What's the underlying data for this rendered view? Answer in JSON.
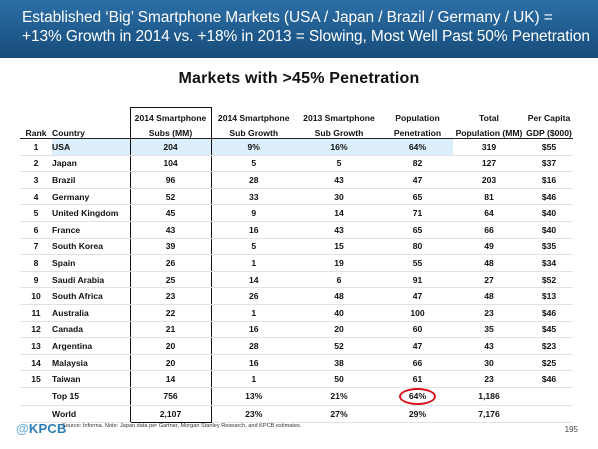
{
  "header": {
    "line1": "Established ‘Big’ Smartphone Markets (USA / Japan / Brazil / Germany / UK) =",
    "line2": "+13% Growth in 2014 vs. +18% in 2013 = Slowing, Most Well Past 50% Penetration"
  },
  "table_title": "Markets with >45% Penetration",
  "columns": {
    "rank": [
      "",
      "Rank"
    ],
    "country": [
      "",
      "Country"
    ],
    "subs": [
      "2014 Smartphone",
      "Subs (MM)"
    ],
    "sub_growth_2014": [
      "2014 Smartphone",
      "Sub Growth"
    ],
    "sub_growth_2013": [
      "2013 Smartphone",
      "Sub Growth"
    ],
    "penetration": [
      "Population",
      "Penetration"
    ],
    "population": [
      "Total",
      "Population (MM)"
    ],
    "gdp": [
      "Per Capita",
      "GDP ($000)"
    ]
  },
  "rows": [
    {
      "rank": "1",
      "country": "USA",
      "subs": "204",
      "g14": "9%",
      "g13": "16%",
      "pen": "64%",
      "pop": "319",
      "gdp": "$55"
    },
    {
      "rank": "2",
      "country": "Japan",
      "subs": "104",
      "g14": "5",
      "g13": "5",
      "pen": "82",
      "pop": "127",
      "gdp": "$37"
    },
    {
      "rank": "3",
      "country": "Brazil",
      "subs": "96",
      "g14": "28",
      "g13": "43",
      "pen": "47",
      "pop": "203",
      "gdp": "$16"
    },
    {
      "rank": "4",
      "country": "Germany",
      "subs": "52",
      "g14": "33",
      "g13": "30",
      "pen": "65",
      "pop": "81",
      "gdp": "$46"
    },
    {
      "rank": "5",
      "country": "United Kingdom",
      "subs": "45",
      "g14": "9",
      "g13": "14",
      "pen": "71",
      "pop": "64",
      "gdp": "$40"
    },
    {
      "rank": "6",
      "country": "France",
      "subs": "43",
      "g14": "16",
      "g13": "43",
      "pen": "65",
      "pop": "66",
      "gdp": "$40"
    },
    {
      "rank": "7",
      "country": "South Korea",
      "subs": "39",
      "g14": "5",
      "g13": "15",
      "pen": "80",
      "pop": "49",
      "gdp": "$35"
    },
    {
      "rank": "8",
      "country": "Spain",
      "subs": "26",
      "g14": "1",
      "g13": "19",
      "pen": "55",
      "pop": "48",
      "gdp": "$34"
    },
    {
      "rank": "9",
      "country": "Saudi Arabia",
      "subs": "25",
      "g14": "14",
      "g13": "6",
      "pen": "91",
      "pop": "27",
      "gdp": "$52"
    },
    {
      "rank": "10",
      "country": "South Africa",
      "subs": "23",
      "g14": "26",
      "g13": "48",
      "pen": "47",
      "pop": "48",
      "gdp": "$13"
    },
    {
      "rank": "11",
      "country": "Australia",
      "subs": "22",
      "g14": "1",
      "g13": "40",
      "pen": "100",
      "pop": "23",
      "gdp": "$46"
    },
    {
      "rank": "12",
      "country": "Canada",
      "subs": "21",
      "g14": "16",
      "g13": "20",
      "pen": "60",
      "pop": "35",
      "gdp": "$45"
    },
    {
      "rank": "13",
      "country": "Argentina",
      "subs": "20",
      "g14": "28",
      "g13": "52",
      "pen": "47",
      "pop": "43",
      "gdp": "$23"
    },
    {
      "rank": "14",
      "country": "Malaysia",
      "subs": "20",
      "g14": "16",
      "g13": "38",
      "pen": "66",
      "pop": "30",
      "gdp": "$25"
    },
    {
      "rank": "15",
      "country": "Taiwan",
      "subs": "14",
      "g14": "1",
      "g13": "50",
      "pen": "61",
      "pop": "23",
      "gdp": "$46"
    }
  ],
  "summary": [
    {
      "label": "Top 15",
      "subs": "756",
      "g14": "13%",
      "g13": "21%",
      "pen": "64%",
      "pop": "1,186",
      "gdp": ""
    },
    {
      "label": "World",
      "subs": "2,107",
      "g14": "23%",
      "g13": "27%",
      "pen": "29%",
      "pop": "7,176",
      "gdp": ""
    }
  ],
  "highlight_color": "#dceef9",
  "circle_color": "#d9141a",
  "footer": {
    "logo_at": "@",
    "logo_text": "KPCB",
    "note": "Source: Informa. Note: Japan data per Gartner, Morgan Stanley Research, and KPCB estimates.",
    "page": "195"
  }
}
